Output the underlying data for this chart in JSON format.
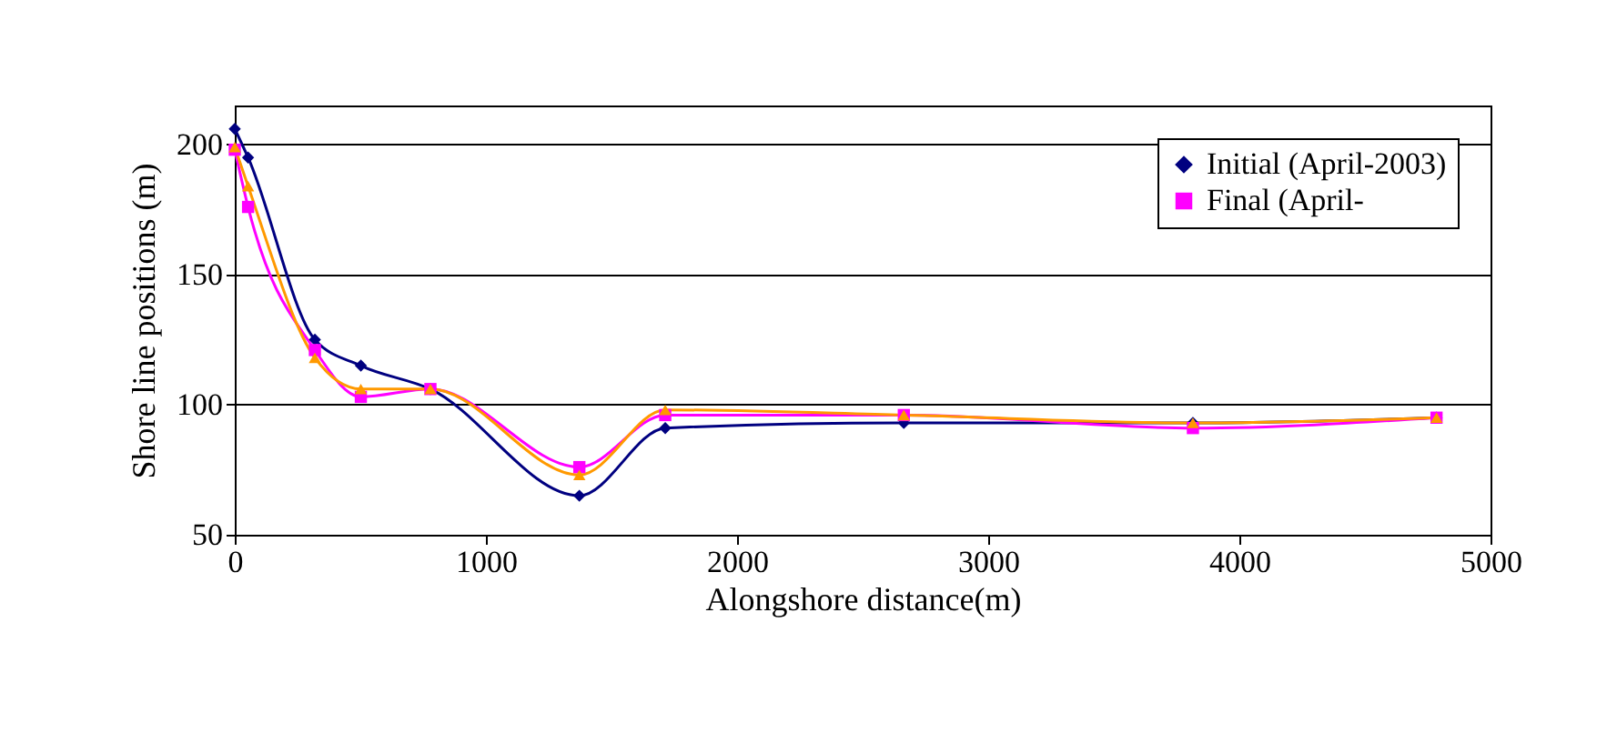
{
  "chart_data": {
    "type": "line",
    "xlabel": "Alongshore distance(m)",
    "ylabel": "Shore line positions (m)",
    "xlim": [
      0,
      5000
    ],
    "xticks": [
      0,
      1000,
      2000,
      3000,
      4000,
      5000
    ],
    "ylim": [
      50,
      215
    ],
    "yticks": [
      50,
      100,
      150,
      200
    ],
    "x": [
      0,
      53,
      319,
      502,
      779,
      1372,
      1714,
      2664,
      3815,
      4785
    ],
    "grid": "y",
    "legend": "top right",
    "line_style": "solid",
    "series": [
      {
        "name": "Initial (April-2003)",
        "color": "#000080",
        "marker": "diamond",
        "values": [
          206,
          195,
          125,
          115,
          106,
          65,
          91,
          93,
          93,
          95
        ]
      },
      {
        "name": "Final (April-",
        "color": "#ff00ff",
        "marker": "square",
        "values": [
          198,
          176,
          121,
          103,
          106,
          76,
          96,
          96,
          91,
          95
        ]
      },
      {
        "color": "#ff9900",
        "marker": "triangle",
        "values": [
          199,
          184,
          118,
          106,
          106,
          73,
          98,
          96,
          93,
          95
        ]
      }
    ]
  }
}
